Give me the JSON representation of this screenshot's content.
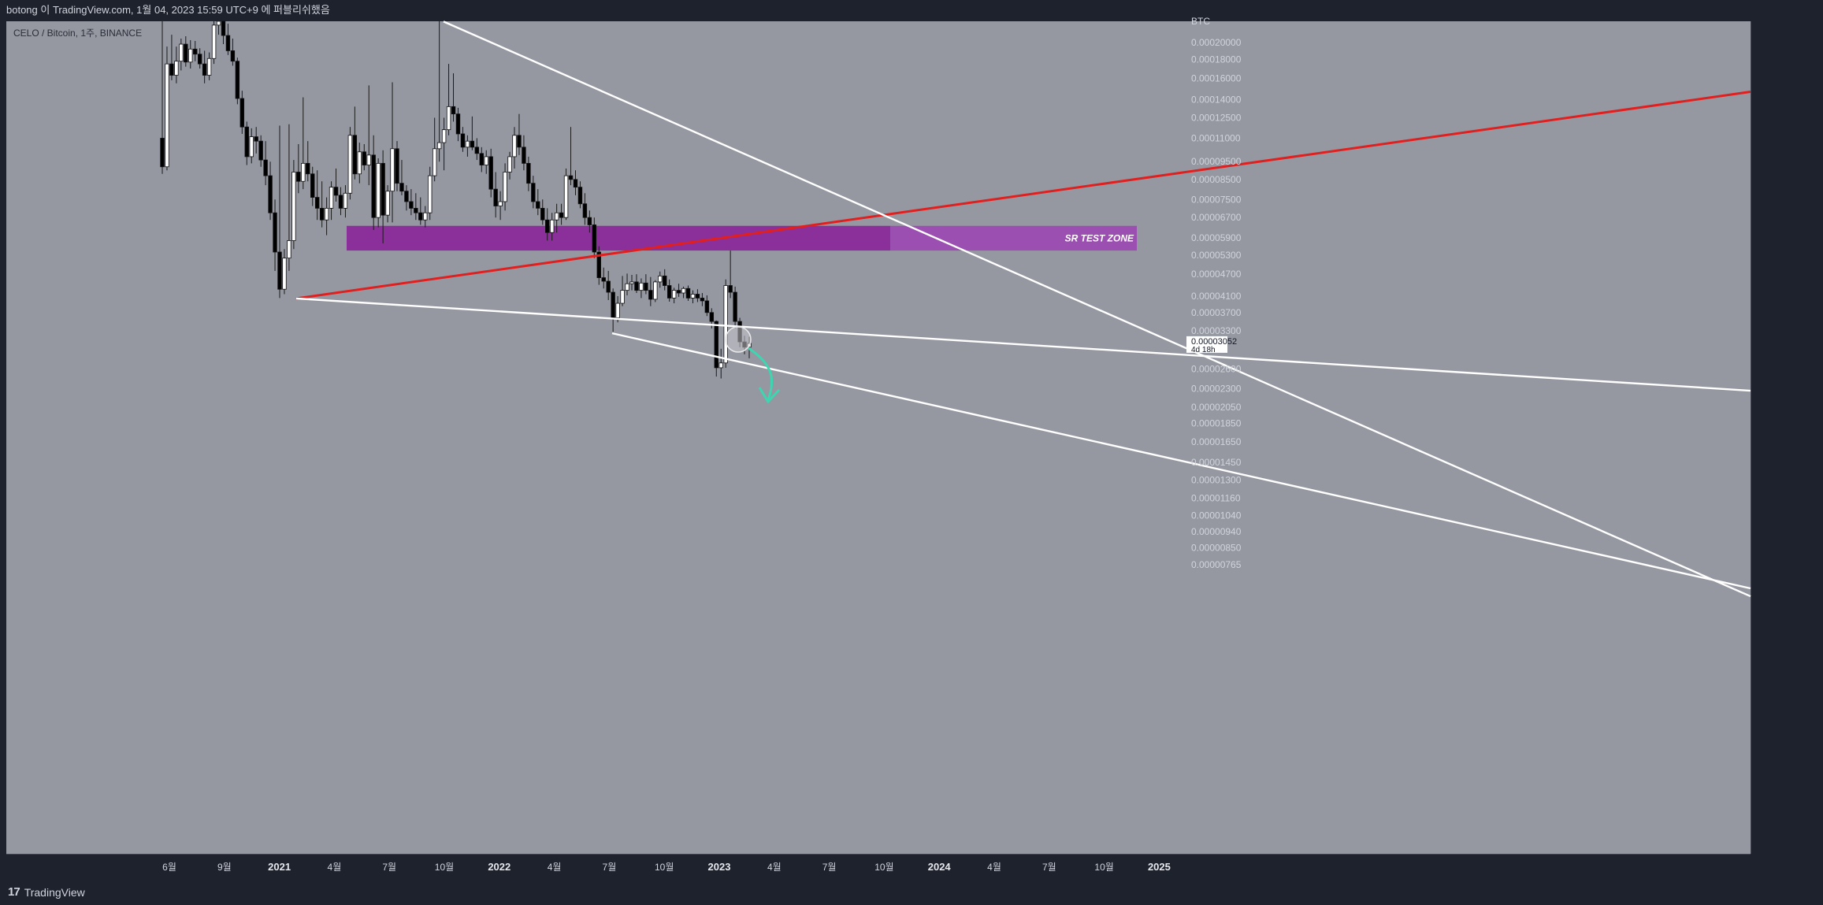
{
  "header": {
    "title": "botong 이 TradingView.com, 1월 04, 2023 15:59 UTC+9 에 퍼블리쉬했음"
  },
  "chart_info": {
    "symbol_line": "CELO / Bitcoin, 1주, BINANCE"
  },
  "footer": {
    "brand": "TradingView",
    "brand_mark": "17"
  },
  "colors": {
    "background": "#9598a1",
    "frame": "#1e222d",
    "bull_candle": "#ffffff",
    "bear_candle": "#000000",
    "resistance_line": "#e11f1f",
    "trend_lines": "#ffffff",
    "zone_fill": "#8b2f9a",
    "zone_extension": "#9b4fb0",
    "arrow": "#3dd6b0"
  },
  "chart_data": {
    "type": "candlestick",
    "quote_unit": "BTC",
    "price_ticks": [
      "0.00020000",
      "0.00018000",
      "0.00016000",
      "0.00014000",
      "0.00012500",
      "0.00011000",
      "0.00009500",
      "0.00008500",
      "0.00007500",
      "0.00006700",
      "0.00005900",
      "0.00005300",
      "0.00004700",
      "0.00004100",
      "0.00003700",
      "0.00003300",
      "0.00002600",
      "0.00002300",
      "0.00002050",
      "0.00001850",
      "0.00001650",
      "0.00001450",
      "0.00001300",
      "0.00001160",
      "0.00001040",
      "0.00000940",
      "0.00000850",
      "0.00000765"
    ],
    "time_ticks": [
      "6월",
      "9월",
      "2021",
      "4월",
      "7월",
      "10월",
      "2022",
      "4월",
      "7월",
      "10월",
      "2023",
      "4월",
      "7월",
      "10월",
      "2024",
      "4월",
      "7월",
      "10월",
      "2025"
    ],
    "year_ticks": [
      "2021",
      "2022",
      "2023",
      "2024",
      "2025"
    ],
    "last_price": "0.00003052",
    "countdown": "4d 18h",
    "zone_label": "SR TEST ZONE",
    "zone_range": [
      5.45e-05,
      6.36e-05
    ],
    "candles": [
      [
        0.00011,
        0.00028,
        8.8e-05,
        9.2e-05
      ],
      [
        9.2e-05,
        0.000195,
        9e-05,
        0.000175
      ],
      [
        0.000175,
        0.00021,
        0.000158,
        0.000163
      ],
      [
        0.000163,
        0.000195,
        0.000155,
        0.000178
      ],
      [
        0.000178,
        0.000205,
        0.000168,
        0.000198
      ],
      [
        0.000198,
        0.000208,
        0.000172,
        0.000177
      ],
      [
        0.000177,
        0.000203,
        0.00017,
        0.000192
      ],
      [
        0.000192,
        0.000202,
        0.000178,
        0.000186
      ],
      [
        0.000186,
        0.000193,
        0.00017,
        0.000175
      ],
      [
        0.000175,
        0.00019,
        0.000155,
        0.000163
      ],
      [
        0.000163,
        0.000188,
        0.000158,
        0.000181
      ],
      [
        0.000181,
        0.000235,
        0.000175,
        0.000223
      ],
      [
        0.000223,
        0.00028,
        0.00021,
        0.000265
      ],
      [
        0.000265,
        0.00028,
        0.000198,
        0.000209
      ],
      [
        0.000209,
        0.000225,
        0.000185,
        0.00019
      ],
      [
        0.00019,
        0.000205,
        0.000173,
        0.000178
      ],
      [
        0.000178,
        0.000182,
        0.000136,
        0.000141
      ],
      [
        0.000141,
        0.000148,
        0.000113,
        0.000118
      ],
      [
        0.000118,
        0.000122,
        9.3e-05,
        9.8e-05
      ],
      [
        9.8e-05,
        0.000117,
        9.4e-05,
        0.000111
      ],
      [
        0.000111,
        0.000118,
        0.0001,
        0.000108
      ],
      [
        0.000108,
        0.000112,
        9.2e-05,
        9.6e-05
      ],
      [
        9.6e-05,
        0.000108,
        8.2e-05,
        8.7e-05
      ],
      [
        8.7e-05,
        9.5e-05,
        6.6e-05,
        6.9e-05
      ],
      [
        6.9e-05,
        7.5e-05,
        4.8e-05,
        5.4e-05
      ],
      [
        5.4e-05,
        0.000119,
        4.05e-05,
        4.28e-05
      ],
      [
        4.28e-05,
        5.5e-05,
        4.15e-05,
        5.2e-05
      ],
      [
        5.2e-05,
        0.00012,
        4.8e-05,
        5.8e-05
      ],
      [
        5.8e-05,
        9.6e-05,
        5.5e-05,
        8.9e-05
      ],
      [
        8.9e-05,
        0.000106,
        7.8e-05,
        8.4e-05
      ],
      [
        8.4e-05,
        0.000142,
        8e-05,
        9.4e-05
      ],
      [
        9.4e-05,
        0.000108,
        8.4e-05,
        8.8e-05
      ],
      [
        8.8e-05,
        9.2e-05,
        7.2e-05,
        7.6e-05
      ],
      [
        7.6e-05,
        9e-05,
        6.6e-05,
        7.1e-05
      ],
      [
        7.1e-05,
        8.4e-05,
        6.3e-05,
        6.6e-05
      ],
      [
        6.6e-05,
        7.6e-05,
        6e-05,
        7.1e-05
      ],
      [
        7.1e-05,
        8.4e-05,
        6.6e-05,
        8.1e-05
      ],
      [
        8.1e-05,
        9.1e-05,
        7.4e-05,
        7.7e-05
      ],
      [
        7.7e-05,
        8.1e-05,
        6.8e-05,
        7.1e-05
      ],
      [
        7.1e-05,
        8.2e-05,
        6.7e-05,
        7.8e-05
      ],
      [
        7.8e-05,
        0.000118,
        7.5e-05,
        0.000112
      ],
      [
        0.000112,
        0.000134,
        8.5e-05,
        8.8e-05
      ],
      [
        8.8e-05,
        0.000107,
        8.3e-05,
        0.000101
      ],
      [
        0.000101,
        0.000106,
        9e-05,
        9.3e-05
      ],
      [
        9.3e-05,
        0.000153,
        8.2e-05,
        9.9e-05
      ],
      [
        9.9e-05,
        0.000112,
        6.2e-05,
        6.7e-05
      ],
      [
        6.7e-05,
        9.7e-05,
        6.3e-05,
        9.4e-05
      ],
      [
        9.4e-05,
        0.000102,
        5.7e-05,
        6.8e-05
      ],
      [
        6.8e-05,
        8.2e-05,
        6.5e-05,
        7.9e-05
      ],
      [
        7.9e-05,
        0.000156,
        6.5e-05,
        0.000103
      ],
      [
        0.000103,
        0.000108,
        7.9e-05,
        8.3e-05
      ],
      [
        8.3e-05,
        9.6e-05,
        7.7e-05,
        7.9e-05
      ],
      [
        7.9e-05,
        8.2e-05,
        7e-05,
        7.4e-05
      ],
      [
        7.4e-05,
        8e-05,
        6.8e-05,
        7.1e-05
      ],
      [
        7.1e-05,
        7.8e-05,
        6.6e-05,
        6.9e-05
      ],
      [
        6.9e-05,
        7.6e-05,
        6.4e-05,
        6.6e-05
      ],
      [
        6.6e-05,
        7.2e-05,
        6.3e-05,
        6.9e-05
      ],
      [
        6.9e-05,
        9.2e-05,
        6.6e-05,
        8.7e-05
      ],
      [
        8.7e-05,
        0.000125,
        8.4e-05,
        0.000103
      ],
      [
        0.000103,
        0.000255,
        9.5e-05,
        0.000107
      ],
      [
        0.000107,
        0.000125,
        9e-05,
        0.000116
      ],
      [
        0.000116,
        0.000175,
        0.000112,
        0.000134
      ],
      [
        0.000134,
        0.000165,
        0.000122,
        0.000128
      ],
      [
        0.000128,
        0.000133,
        0.000108,
        0.000113
      ],
      [
        0.000113,
        0.000118,
        0.000101,
        0.000104
      ],
      [
        0.000104,
        0.000112,
        9.8e-05,
        0.000108
      ],
      [
        0.000108,
        0.000126,
        0.000102,
        0.000104
      ],
      [
        0.000104,
        0.00011,
        9.6e-05,
        0.0001
      ],
      [
        0.0001,
        0.000104,
        8.9e-05,
        9.3e-05
      ],
      [
        9.3e-05,
        0.000102,
        8.8e-05,
        9.8e-05
      ],
      [
        9.8e-05,
        0.000103,
        7.6e-05,
        8e-05
      ],
      [
        8e-05,
        8.9e-05,
        6.7e-05,
        7.2e-05
      ],
      [
        7.2e-05,
        7.9e-05,
        6.6e-05,
        7.4e-05
      ],
      [
        7.4e-05,
        9.4e-05,
        7e-05,
        8.9e-05
      ],
      [
        8.9e-05,
        0.000101,
        8.5e-05,
        9.8e-05
      ],
      [
        9.8e-05,
        0.000118,
        9.1e-05,
        0.000112
      ],
      [
        0.000112,
        0.000128,
        9.9e-05,
        0.000104
      ],
      [
        0.000104,
        0.000112,
        9e-05,
        9.4e-05
      ],
      [
        9.4e-05,
        9.8e-05,
        7.9e-05,
        8.3e-05
      ],
      [
        8.3e-05,
        8.7e-05,
        7.1e-05,
        7.4e-05
      ],
      [
        7.4e-05,
        8e-05,
        6.8e-05,
        7.1e-05
      ],
      [
        7.1e-05,
        7.5e-05,
        6.4e-05,
        6.6e-05
      ],
      [
        6.6e-05,
        7.1e-05,
        5.8e-05,
        6.1e-05
      ],
      [
        6.1e-05,
        6.9e-05,
        5.8e-05,
        6.6e-05
      ],
      [
        6.6e-05,
        7.3e-05,
        6.1e-05,
        6.9e-05
      ],
      [
        6.9e-05,
        7.3e-05,
        6.4e-05,
        6.7e-05
      ],
      [
        6.7e-05,
        9.1e-05,
        6.6e-05,
        8.7e-05
      ],
      [
        8.7e-05,
        0.000118,
        8.2e-05,
        8.5e-05
      ],
      [
        8.5e-05,
        9e-05,
        7.7e-05,
        8.1e-05
      ],
      [
        8.1e-05,
        8.4e-05,
        7.1e-05,
        7.3e-05
      ],
      [
        7.3e-05,
        7.8e-05,
        6.4e-05,
        6.7e-05
      ],
      [
        6.7e-05,
        7e-05,
        6.1e-05,
        6.4e-05
      ],
      [
        6.4e-05,
        6.7e-05,
        5.2e-05,
        5.4e-05
      ],
      [
        5.4e-05,
        5.6e-05,
        4.4e-05,
        4.6e-05
      ],
      [
        4.6e-05,
        4.9e-05,
        4.3e-05,
        4.5e-05
      ],
      [
        4.5e-05,
        4.8e-05,
        4e-05,
        4.2e-05
      ],
      [
        4.2e-05,
        4.3e-05,
        3.28e-05,
        3.58e-05
      ],
      [
        3.58e-05,
        4.1e-05,
        3.48e-05,
        3.92e-05
      ],
      [
        3.92e-05,
        4.65e-05,
        3.85e-05,
        4.25e-05
      ],
      [
        4.25e-05,
        4.72e-05,
        4.12e-05,
        4.43e-05
      ],
      [
        4.43e-05,
        4.68e-05,
        4.25e-05,
        4.48e-05
      ],
      [
        4.48e-05,
        4.7e-05,
        4.18e-05,
        4.25e-05
      ],
      [
        4.25e-05,
        4.58e-05,
        4.05e-05,
        4.45e-05
      ],
      [
        4.45e-05,
        4.7e-05,
        4.15e-05,
        4.25e-05
      ],
      [
        4.25e-05,
        4.62e-05,
        3.85e-05,
        4.02e-05
      ],
      [
        4.02e-05,
        4.53e-05,
        3.95e-05,
        4.48e-05
      ],
      [
        4.48e-05,
        4.78e-05,
        4.32e-05,
        4.65e-05
      ],
      [
        4.65e-05,
        4.85e-05,
        4.25e-05,
        4.38e-05
      ],
      [
        4.38e-05,
        4.55e-05,
        3.96e-05,
        4.05e-05
      ],
      [
        4.05e-05,
        4.32e-05,
        3.92e-05,
        4.25e-05
      ],
      [
        4.25e-05,
        4.43e-05,
        4.08e-05,
        4.18e-05
      ],
      [
        4.18e-05,
        4.35e-05,
        4.05e-05,
        4.3e-05
      ],
      [
        4.3e-05,
        4.38e-05,
        3.98e-05,
        4.05e-05
      ],
      [
        4.05e-05,
        4.25e-05,
        3.92e-05,
        4.15e-05
      ],
      [
        4.15e-05,
        4.28e-05,
        3.95e-05,
        4.05e-05
      ],
      [
        4.05e-05,
        4.18e-05,
        3.85e-05,
        3.98e-05
      ],
      [
        3.98e-05,
        4.12e-05,
        3.62e-05,
        3.7e-05
      ],
      [
        3.7e-05,
        3.8e-05,
        3.35e-05,
        3.5e-05
      ],
      [
        3.5e-05,
        3.52e-05,
        2.48e-05,
        2.62e-05
      ],
      [
        2.62e-05,
        2.95e-05,
        2.45e-05,
        2.7e-05
      ],
      [
        2.7e-05,
        4.55e-05,
        2.62e-05,
        4.38e-05
      ],
      [
        4.38e-05,
        5.45e-05,
        4.05e-05,
        4.2e-05
      ],
      [
        4.2e-05,
        4.35e-05,
        3.35e-05,
        3.5e-05
      ],
      [
        3.5e-05,
        3.58e-05,
        2.98e-05,
        3.08e-05
      ],
      [
        3.08e-05,
        3.2e-05,
        2.85e-05,
        2.98e-05
      ],
      [
        2.98e-05,
        3.18e-05,
        2.78e-05,
        3.05e-05
      ]
    ],
    "overlays": {
      "red_line": [
        [
          376,
          4.04e-05
        ],
        [
          2222,
          0.000147
        ]
      ],
      "lines": [
        [
          [
            563,
            0.000228
          ],
          [
            2222,
            6.28e-06
          ]
        ],
        [
          [
            376,
            4.04e-05
          ],
          [
            2222,
            2.27e-05
          ]
        ],
        [
          [
            777,
            3.25e-05
          ],
          [
            2222,
            6.6e-06
          ]
        ]
      ]
    }
  }
}
